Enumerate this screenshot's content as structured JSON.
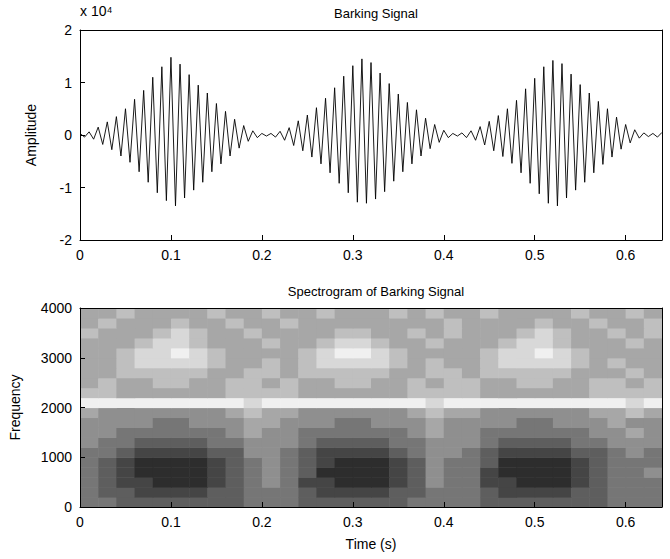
{
  "chart_data": [
    {
      "type": "line",
      "title": "Barking Signal",
      "ylabel": "Amplitude",
      "annotation": "x 10⁴",
      "color": "#000000",
      "grid": false,
      "xlim": [
        0,
        0.64
      ],
      "xticks": [
        0,
        0.1,
        0.2,
        0.3,
        0.4,
        0.5,
        0.6
      ],
      "ylim": [
        -2,
        2
      ],
      "yticks": [
        -2,
        -1,
        0,
        1,
        2
      ],
      "x": [
        0,
        0.005,
        0.01,
        0.015,
        0.02,
        0.025,
        0.03,
        0.035,
        0.04,
        0.045,
        0.05,
        0.055,
        0.06,
        0.065,
        0.07,
        0.075,
        0.08,
        0.085,
        0.09,
        0.095,
        0.1,
        0.105,
        0.11,
        0.115,
        0.12,
        0.125,
        0.13,
        0.135,
        0.14,
        0.145,
        0.15,
        0.155,
        0.16,
        0.165,
        0.17,
        0.175,
        0.18,
        0.185,
        0.19,
        0.195,
        0.2,
        0.205,
        0.21,
        0.215,
        0.22,
        0.225,
        0.23,
        0.235,
        0.24,
        0.245,
        0.25,
        0.255,
        0.26,
        0.265,
        0.27,
        0.275,
        0.28,
        0.285,
        0.29,
        0.295,
        0.3,
        0.305,
        0.31,
        0.315,
        0.32,
        0.325,
        0.33,
        0.335,
        0.34,
        0.345,
        0.35,
        0.355,
        0.36,
        0.365,
        0.37,
        0.375,
        0.38,
        0.385,
        0.39,
        0.395,
        0.4,
        0.405,
        0.41,
        0.415,
        0.42,
        0.425,
        0.43,
        0.435,
        0.44,
        0.445,
        0.45,
        0.455,
        0.46,
        0.465,
        0.47,
        0.475,
        0.48,
        0.485,
        0.49,
        0.495,
        0.5,
        0.505,
        0.51,
        0.515,
        0.52,
        0.525,
        0.53,
        0.535,
        0.54,
        0.545,
        0.55,
        0.555,
        0.56,
        0.565,
        0.57,
        0.575,
        0.58,
        0.585,
        0.59,
        0.595,
        0.6,
        0.605,
        0.61,
        0.615,
        0.62,
        0.625,
        0.63,
        0.635,
        0.64
      ],
      "values": [
        0.03,
        -0.04,
        0.06,
        -0.08,
        0.15,
        -0.18,
        0.25,
        -0.28,
        0.35,
        -0.4,
        0.5,
        -0.52,
        0.68,
        -0.7,
        0.85,
        -0.9,
        1.1,
        -1.1,
        1.3,
        -1.25,
        1.48,
        -1.35,
        1.35,
        -1.2,
        1.15,
        -1.05,
        0.95,
        -0.9,
        0.8,
        -0.7,
        0.6,
        -0.55,
        0.45,
        -0.4,
        0.3,
        -0.25,
        0.18,
        -0.12,
        0.08,
        -0.05,
        0.03,
        -0.02,
        0.03,
        -0.04,
        0.07,
        -0.1,
        0.14,
        -0.2,
        0.27,
        -0.3,
        0.38,
        -0.42,
        0.52,
        -0.55,
        0.7,
        -0.72,
        0.9,
        -0.92,
        1.12,
        -1.1,
        1.32,
        -1.28,
        1.45,
        -1.3,
        1.38,
        -1.22,
        1.18,
        -1.08,
        0.98,
        -0.88,
        0.78,
        -0.7,
        0.62,
        -0.55,
        0.48,
        -0.4,
        0.32,
        -0.26,
        0.2,
        -0.14,
        0.09,
        -0.05,
        0.03,
        -0.02,
        0.04,
        -0.05,
        0.08,
        -0.1,
        0.16,
        -0.19,
        0.26,
        -0.3,
        0.37,
        -0.41,
        0.5,
        -0.54,
        0.66,
        -0.72,
        0.88,
        -0.92,
        1.08,
        -1.12,
        1.3,
        -1.3,
        1.42,
        -1.35,
        1.36,
        -1.2,
        1.16,
        -1.05,
        0.96,
        -0.9,
        0.8,
        -0.72,
        0.64,
        -0.56,
        0.5,
        -0.42,
        0.34,
        -0.27,
        0.2,
        -0.15,
        0.1,
        -0.06,
        0.04,
        -0.03,
        0.03,
        -0.04,
        0.05
      ]
    },
    {
      "type": "heatmap",
      "title": "Spectrogram of Barking Signal",
      "xlabel": "Time (s)",
      "ylabel": "Frequency",
      "grid": false,
      "xlim": [
        0,
        0.64
      ],
      "xticks": [
        0,
        0.1,
        0.2,
        0.3,
        0.4,
        0.5,
        0.6
      ],
      "ylim": [
        0,
        4000
      ],
      "yticks": [
        0,
        1000,
        2000,
        3000,
        4000
      ],
      "x_edges": [
        0,
        0.02,
        0.04,
        0.06,
        0.08,
        0.1,
        0.12,
        0.14,
        0.16,
        0.18,
        0.2,
        0.22,
        0.24,
        0.26,
        0.28,
        0.3,
        0.32,
        0.34,
        0.36,
        0.38,
        0.4,
        0.42,
        0.44,
        0.46,
        0.48,
        0.5,
        0.52,
        0.54,
        0.56,
        0.58,
        0.6,
        0.62,
        0.64
      ],
      "y_edges": [
        0,
        200,
        400,
        600,
        800,
        1000,
        1200,
        1400,
        1600,
        1800,
        2000,
        2200,
        2400,
        2600,
        2800,
        3000,
        3200,
        3400,
        3600,
        3800,
        4000
      ],
      "cells": [
        [
          4,
          4,
          3,
          3,
          3,
          3,
          3,
          3,
          3,
          4,
          4,
          4,
          3,
          3,
          3,
          3,
          3,
          3,
          4,
          4,
          4,
          4,
          3,
          3,
          3,
          3,
          3,
          3,
          3,
          4,
          4,
          4
        ],
        [
          4,
          3,
          3,
          2,
          2,
          2,
          2,
          3,
          3,
          4,
          4,
          4,
          3,
          2,
          2,
          2,
          2,
          3,
          3,
          4,
          4,
          4,
          3,
          2,
          2,
          2,
          2,
          3,
          3,
          4,
          4,
          4
        ],
        [
          4,
          3,
          2,
          2,
          1,
          1,
          1,
          2,
          3,
          4,
          5,
          4,
          2,
          2,
          1,
          1,
          1,
          2,
          3,
          5,
          4,
          4,
          2,
          2,
          1,
          1,
          1,
          2,
          3,
          4,
          4,
          4
        ],
        [
          4,
          3,
          2,
          1,
          1,
          1,
          1,
          2,
          3,
          4,
          5,
          4,
          3,
          1,
          1,
          1,
          1,
          2,
          3,
          5,
          4,
          4,
          2,
          1,
          1,
          1,
          1,
          2,
          3,
          4,
          4,
          5
        ],
        [
          4,
          3,
          2,
          1,
          1,
          1,
          1,
          2,
          3,
          4,
          5,
          4,
          3,
          2,
          1,
          1,
          1,
          2,
          3,
          5,
          4,
          4,
          3,
          1,
          1,
          1,
          1,
          2,
          3,
          4,
          4,
          4
        ],
        [
          4,
          4,
          3,
          2,
          2,
          2,
          2,
          3,
          3,
          5,
          5,
          4,
          3,
          2,
          2,
          2,
          2,
          3,
          4,
          5,
          5,
          4,
          3,
          2,
          2,
          2,
          2,
          3,
          3,
          4,
          5,
          4
        ],
        [
          5,
          4,
          4,
          3,
          3,
          3,
          3,
          4,
          4,
          5,
          5,
          5,
          4,
          3,
          3,
          3,
          3,
          4,
          4,
          5,
          5,
          5,
          4,
          3,
          3,
          3,
          3,
          4,
          4,
          5,
          5,
          5
        ],
        [
          5,
          5,
          4,
          4,
          4,
          4,
          4,
          4,
          5,
          6,
          5,
          5,
          4,
          4,
          4,
          4,
          4,
          4,
          5,
          6,
          5,
          5,
          4,
          4,
          4,
          4,
          4,
          4,
          5,
          5,
          6,
          5
        ],
        [
          5,
          5,
          5,
          5,
          4,
          4,
          5,
          5,
          5,
          6,
          6,
          5,
          5,
          5,
          4,
          4,
          5,
          5,
          5,
          6,
          5,
          5,
          5,
          5,
          4,
          4,
          5,
          5,
          5,
          6,
          5,
          5
        ],
        [
          6,
          5,
          5,
          5,
          5,
          5,
          5,
          5,
          6,
          7,
          6,
          6,
          5,
          5,
          5,
          5,
          5,
          5,
          6,
          7,
          6,
          6,
          5,
          5,
          5,
          5,
          5,
          5,
          6,
          6,
          7,
          6
        ],
        [
          9,
          9,
          9,
          9,
          9,
          9,
          9,
          9,
          9,
          8,
          9,
          9,
          9,
          9,
          9,
          9,
          9,
          9,
          9,
          8,
          9,
          9,
          9,
          9,
          9,
          9,
          9,
          9,
          9,
          9,
          8,
          9
        ],
        [
          7,
          7,
          6,
          6,
          6,
          6,
          6,
          6,
          7,
          7,
          7,
          7,
          6,
          6,
          6,
          6,
          6,
          6,
          7,
          7,
          7,
          7,
          6,
          6,
          6,
          6,
          6,
          6,
          7,
          7,
          7,
          7
        ],
        [
          6,
          7,
          6,
          6,
          7,
          7,
          6,
          6,
          7,
          7,
          6,
          7,
          6,
          6,
          7,
          7,
          6,
          6,
          7,
          6,
          7,
          7,
          6,
          6,
          7,
          7,
          6,
          6,
          7,
          7,
          6,
          7
        ],
        [
          6,
          6,
          7,
          7,
          7,
          7,
          7,
          6,
          6,
          7,
          7,
          6,
          7,
          7,
          7,
          7,
          7,
          6,
          6,
          7,
          7,
          6,
          7,
          7,
          7,
          7,
          7,
          6,
          6,
          6,
          7,
          6
        ],
        [
          6,
          6,
          7,
          8,
          8,
          8,
          8,
          7,
          6,
          6,
          7,
          6,
          7,
          8,
          8,
          8,
          8,
          7,
          6,
          7,
          6,
          6,
          7,
          8,
          8,
          8,
          8,
          7,
          6,
          7,
          6,
          6
        ],
        [
          6,
          6,
          7,
          8,
          8,
          9,
          8,
          7,
          6,
          6,
          6,
          6,
          7,
          8,
          9,
          9,
          8,
          7,
          6,
          6,
          6,
          6,
          7,
          8,
          8,
          9,
          8,
          7,
          6,
          6,
          6,
          6
        ],
        [
          6,
          6,
          6,
          7,
          8,
          8,
          7,
          6,
          6,
          6,
          7,
          6,
          6,
          7,
          8,
          8,
          7,
          6,
          6,
          7,
          6,
          6,
          6,
          7,
          8,
          8,
          7,
          6,
          6,
          6,
          7,
          6
        ],
        [
          7,
          6,
          6,
          6,
          7,
          8,
          7,
          6,
          6,
          7,
          6,
          6,
          6,
          6,
          7,
          7,
          6,
          6,
          7,
          6,
          7,
          6,
          6,
          6,
          7,
          8,
          7,
          6,
          6,
          7,
          6,
          7
        ],
        [
          6,
          7,
          6,
          6,
          6,
          7,
          6,
          6,
          7,
          6,
          6,
          7,
          6,
          6,
          6,
          6,
          6,
          6,
          6,
          6,
          7,
          6,
          6,
          6,
          6,
          7,
          6,
          6,
          7,
          6,
          6,
          7
        ],
        [
          6,
          6,
          7,
          6,
          6,
          6,
          6,
          7,
          6,
          6,
          7,
          6,
          6,
          7,
          6,
          6,
          6,
          7,
          6,
          7,
          6,
          6,
          7,
          6,
          6,
          6,
          6,
          7,
          6,
          6,
          7,
          6
        ]
      ]
    }
  ]
}
